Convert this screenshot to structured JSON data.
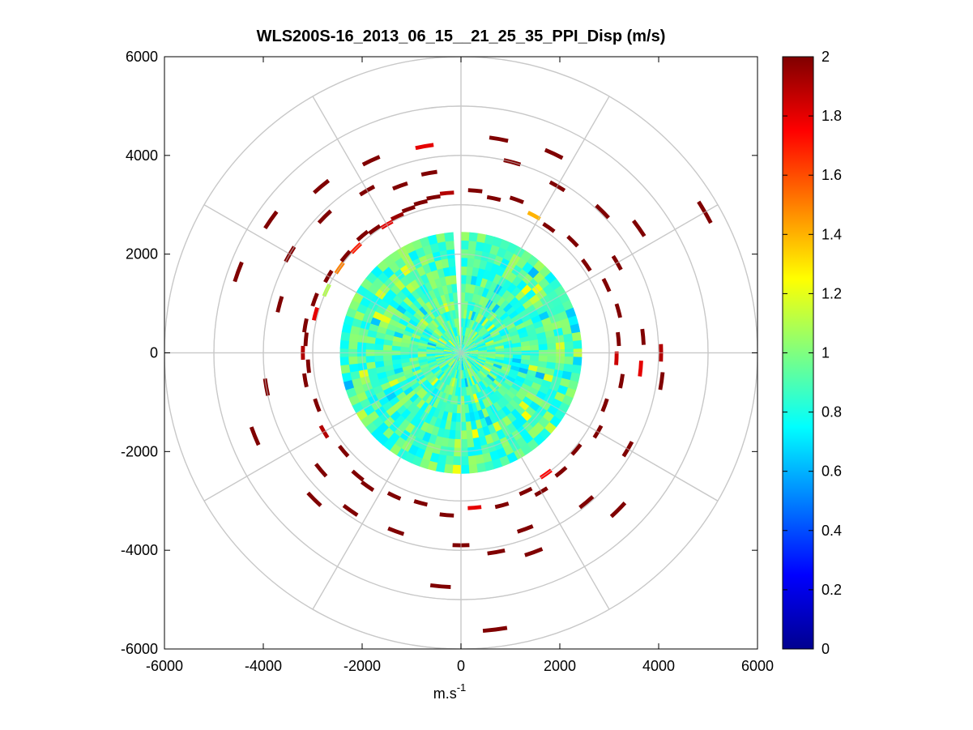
{
  "chart_data": {
    "type": "heatmap",
    "subtype": "polar-ppi-scan",
    "title": "WLS200S-16_2013_06_15__21_25_35_PPI_Disp (m/s)",
    "xlabel": "m.s",
    "xlabel_superscript": "-1",
    "ylabel": "",
    "xlim": [
      -6000,
      6000
    ],
    "ylim": [
      -6000,
      6000
    ],
    "x_ticks": [
      -6000,
      -4000,
      -2000,
      0,
      2000,
      4000,
      6000
    ],
    "y_ticks": [
      -6000,
      -4000,
      -2000,
      0,
      2000,
      4000,
      6000
    ],
    "x_tick_labels": [
      "-6000",
      "-4000",
      "-2000",
      "0",
      "2000",
      "4000",
      "6000"
    ],
    "y_tick_labels": [
      "6000",
      "4000",
      "2000",
      "0",
      "-2000",
      "-4000",
      "-6000"
    ],
    "polar_grid": {
      "rings": [
        1000,
        2000,
        3000,
        4000,
        5000,
        6000
      ],
      "spoke_angles_deg": [
        0,
        30,
        60,
        90,
        120,
        150,
        180,
        210,
        240,
        270,
        300,
        330
      ]
    },
    "grid": true,
    "colormap": "jet",
    "colorbar": {
      "range": [
        0,
        2
      ],
      "ticks": [
        0,
        0.2,
        0.4,
        0.6,
        0.8,
        1,
        1.2,
        1.4,
        1.6,
        1.8,
        2
      ],
      "tick_labels": [
        "0",
        "0.2",
        "0.4",
        "0.6",
        "0.8",
        "1",
        "1.2",
        "1.4",
        "1.6",
        "1.8",
        "2"
      ]
    },
    "dense_region": {
      "r_max": 2450,
      "missing_sector_deg": [
        -6,
        0
      ],
      "typical_value": 0.9
    },
    "sparse_gates": [
      {
        "az": 355,
        "r": 3250,
        "v": 1.9
      },
      {
        "az": 350,
        "r": 3200,
        "v": 2
      },
      {
        "az": 345,
        "r": 3150,
        "v": 2
      },
      {
        "az": 340,
        "r": 3100,
        "v": 2
      },
      {
        "az": 335,
        "r": 3050,
        "v": 1.95
      },
      {
        "az": 330,
        "r": 3000,
        "v": 1.8
      },
      {
        "az": 325,
        "r": 3050,
        "v": 2
      },
      {
        "az": 320,
        "r": 3100,
        "v": 2
      },
      {
        "az": 315,
        "r": 3000,
        "v": 1.7
      },
      {
        "az": 310,
        "r": 3050,
        "v": 2
      },
      {
        "az": 305,
        "r": 3000,
        "v": 1.5
      },
      {
        "az": 300,
        "r": 3100,
        "v": 2
      },
      {
        "az": 295,
        "r": 3000,
        "v": 1.1
      },
      {
        "az": 290,
        "r": 3150,
        "v": 2
      },
      {
        "az": 285,
        "r": 3050,
        "v": 1.8
      },
      {
        "az": 280,
        "r": 3200,
        "v": 2
      },
      {
        "az": 275,
        "r": 3150,
        "v": 2
      },
      {
        "az": 270,
        "r": 3200,
        "v": 1.9
      },
      {
        "az": 265,
        "r": 3100,
        "v": 2
      },
      {
        "az": 260,
        "r": 3200,
        "v": 2
      },
      {
        "az": 250,
        "r": 3100,
        "v": 2
      },
      {
        "az": 240,
        "r": 3200,
        "v": 1.9
      },
      {
        "az": 230,
        "r": 3100,
        "v": 2
      },
      {
        "az": 220,
        "r": 3250,
        "v": 2
      },
      {
        "az": 215,
        "r": 3300,
        "v": 2
      },
      {
        "az": 205,
        "r": 3200,
        "v": 2
      },
      {
        "az": 195,
        "r": 3150,
        "v": 2
      },
      {
        "az": 185,
        "r": 3300,
        "v": 2
      },
      {
        "az": 175,
        "r": 3150,
        "v": 1.8
      },
      {
        "az": 165,
        "r": 3200,
        "v": 2
      },
      {
        "az": 155,
        "r": 3100,
        "v": 2
      },
      {
        "az": 150,
        "r": 3250,
        "v": 2
      },
      {
        "az": 145,
        "r": 3000,
        "v": 1.75
      },
      {
        "az": 140,
        "r": 3150,
        "v": 2
      },
      {
        "az": 130,
        "r": 3050,
        "v": 2
      },
      {
        "az": 120,
        "r": 3200,
        "v": 2
      },
      {
        "az": 110,
        "r": 3100,
        "v": 2
      },
      {
        "az": 100,
        "r": 3300,
        "v": 2
      },
      {
        "az": 92,
        "r": 3150,
        "v": 1.85
      },
      {
        "az": 85,
        "r": 3200,
        "v": 2
      },
      {
        "az": 75,
        "r": 3300,
        "v": 2
      },
      {
        "az": 65,
        "r": 3250,
        "v": 2
      },
      {
        "az": 55,
        "r": 3100,
        "v": 2
      },
      {
        "az": 45,
        "r": 3200,
        "v": 2
      },
      {
        "az": 35,
        "r": 3100,
        "v": 2
      },
      {
        "az": 28,
        "r": 3150,
        "v": 1.4
      },
      {
        "az": 20,
        "r": 3300,
        "v": 2
      },
      {
        "az": 12,
        "r": 3200,
        "v": 2
      },
      {
        "az": 5,
        "r": 3300,
        "v": 2
      },
      {
        "az": 350,
        "r": 3700,
        "v": 2
      },
      {
        "az": 340,
        "r": 3600,
        "v": 2
      },
      {
        "az": 330,
        "r": 3800,
        "v": 2
      },
      {
        "az": 315,
        "r": 3900,
        "v": 2
      },
      {
        "az": 300,
        "r": 4000,
        "v": 2
      },
      {
        "az": 285,
        "r": 3800,
        "v": 2
      },
      {
        "az": 260,
        "r": 4000,
        "v": 2
      },
      {
        "az": 230,
        "r": 3700,
        "v": 2
      },
      {
        "az": 215,
        "r": 3900,
        "v": 2
      },
      {
        "az": 200,
        "r": 3850,
        "v": 2
      },
      {
        "az": 180,
        "r": 3900,
        "v": 2
      },
      {
        "az": 170,
        "r": 4100,
        "v": 2
      },
      {
        "az": 160,
        "r": 3800,
        "v": 2
      },
      {
        "az": 140,
        "r": 3950,
        "v": 2
      },
      {
        "az": 120,
        "r": 3900,
        "v": 2
      },
      {
        "az": 95,
        "r": 3650,
        "v": 1.8
      },
      {
        "az": 85,
        "r": 3700,
        "v": 2
      },
      {
        "az": 60,
        "r": 3650,
        "v": 2
      },
      {
        "az": 45,
        "r": 4050,
        "v": 2
      },
      {
        "az": 30,
        "r": 3900,
        "v": 2
      },
      {
        "az": 15,
        "r": 4000,
        "v": 2
      },
      {
        "az": 350,
        "r": 4250,
        "v": 1.8
      },
      {
        "az": 335,
        "r": 4300,
        "v": 2
      },
      {
        "az": 320,
        "r": 4400,
        "v": 2
      },
      {
        "az": 305,
        "r": 4700,
        "v": 2
      },
      {
        "az": 290,
        "r": 4800,
        "v": 2
      },
      {
        "az": 248,
        "r": 4500,
        "v": 2
      },
      {
        "az": 225,
        "r": 4200,
        "v": 2
      },
      {
        "az": 185,
        "r": 4750,
        "v": 2
      },
      {
        "az": 173,
        "r": 5650,
        "v": 2
      },
      {
        "az": 160,
        "r": 4300,
        "v": 2
      },
      {
        "az": 135,
        "r": 4500,
        "v": 2
      },
      {
        "az": 98,
        "r": 4100,
        "v": 2
      },
      {
        "az": 90,
        "r": 4050,
        "v": 1.9
      },
      {
        "az": 60,
        "r": 5700,
        "v": 2
      },
      {
        "az": 55,
        "r": 4400,
        "v": 2
      },
      {
        "az": 25,
        "r": 4450,
        "v": 2
      },
      {
        "az": 10,
        "r": 4400,
        "v": 2
      }
    ]
  }
}
